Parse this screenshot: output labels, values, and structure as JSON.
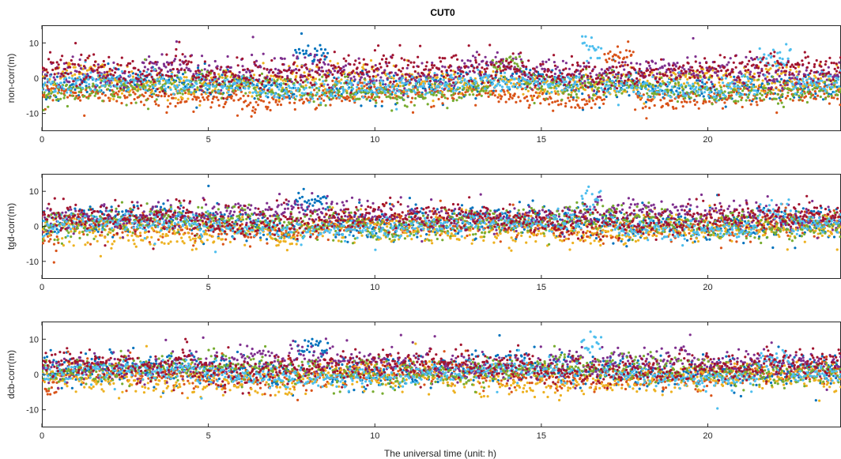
{
  "chart_data": {
    "type": "scatter",
    "title": "CUT0",
    "xlabel": "The universal time (unit: h)",
    "xlim": [
      0,
      24
    ],
    "xticks": [
      0,
      5,
      10,
      15,
      20
    ],
    "colors": [
      "#0072BD",
      "#D95319",
      "#EDB120",
      "#7E2F8E",
      "#77AC30",
      "#4DBEEE",
      "#A2142F"
    ],
    "panels": [
      {
        "ylabel": "non-corr(m)",
        "ylim": [
          -15,
          15
        ],
        "yticks": [
          -10,
          0,
          10
        ],
        "series": [
          {
            "color": "#0072BD",
            "level": -2,
            "spread": 2.0,
            "bursts": [
              [
                7.6,
                8.6,
                7
              ]
            ]
          },
          {
            "color": "#D95319",
            "level": -5,
            "spread": 1.6,
            "bursts": [
              [
                16.9,
                17.8,
                6
              ]
            ]
          },
          {
            "color": "#EDB120",
            "level": -1,
            "spread": 2.0,
            "bursts": [
              [
                0.5,
                2.0,
                2
              ]
            ]
          },
          {
            "color": "#7E2F8E",
            "level": 1,
            "spread": 2.2,
            "bursts": [
              [
                3.0,
                4.5,
                4
              ],
              [
                12.5,
                14.5,
                4
              ]
            ]
          },
          {
            "color": "#77AC30",
            "level": -3,
            "spread": 1.8,
            "bursts": [
              [
                13.5,
                14.5,
                4
              ]
            ]
          },
          {
            "color": "#4DBEEE",
            "level": -2,
            "spread": 1.4,
            "bursts": [
              [
                16.2,
                16.8,
                8
              ],
              [
                21.5,
                22.5,
                5
              ]
            ]
          },
          {
            "color": "#A2142F",
            "level": 2,
            "spread": 2.2,
            "bursts": [
              [
                4.0,
                4.5,
                5
              ]
            ]
          }
        ]
      },
      {
        "ylabel": "tgd-corr(m)",
        "ylim": [
          -15,
          15
        ],
        "yticks": [
          -10,
          0,
          10
        ],
        "series": [
          {
            "color": "#0072BD",
            "level": 1,
            "spread": 2.2,
            "bursts": [
              [
                7.6,
                8.6,
                7
              ]
            ]
          },
          {
            "color": "#D95319",
            "level": 0,
            "spread": 1.8,
            "bursts": [
              [
                0.0,
                0.5,
                -3
              ]
            ]
          },
          {
            "color": "#EDB120",
            "level": -1,
            "spread": 2.0,
            "bursts": [
              [
                7.0,
                7.6,
                -4
              ]
            ]
          },
          {
            "color": "#7E2F8E",
            "level": 3,
            "spread": 2.0,
            "bursts": [
              [
                19.5,
                20.5,
                3
              ]
            ]
          },
          {
            "color": "#77AC30",
            "level": 1,
            "spread": 2.0,
            "bursts": []
          },
          {
            "color": "#4DBEEE",
            "level": 0,
            "spread": 1.4,
            "bursts": [
              [
                16.2,
                16.8,
                8
              ],
              [
                21.5,
                22.5,
                4
              ]
            ]
          },
          {
            "color": "#A2142F",
            "level": 2,
            "spread": 2.0,
            "bursts": [
              [
                4.0,
                4.5,
                5
              ]
            ]
          }
        ]
      },
      {
        "ylabel": "dcb-corr(m)",
        "ylim": [
          -15,
          15
        ],
        "yticks": [
          -10,
          0,
          10
        ],
        "series": [
          {
            "color": "#0072BD",
            "level": 1,
            "spread": 2.2,
            "bursts": [
              [
                7.6,
                8.6,
                7
              ]
            ]
          },
          {
            "color": "#D95319",
            "level": 0,
            "spread": 1.8,
            "bursts": [
              [
                0.0,
                0.5,
                -3
              ]
            ]
          },
          {
            "color": "#EDB120",
            "level": -1,
            "spread": 2.0,
            "bursts": [
              [
                7.0,
                7.6,
                -4
              ]
            ]
          },
          {
            "color": "#7E2F8E",
            "level": 3,
            "spread": 2.0,
            "bursts": [
              [
                19.5,
                20.5,
                3
              ]
            ]
          },
          {
            "color": "#77AC30",
            "level": 1,
            "spread": 2.0,
            "bursts": []
          },
          {
            "color": "#4DBEEE",
            "level": 0,
            "spread": 1.4,
            "bursts": [
              [
                16.2,
                16.8,
                8
              ],
              [
                21.5,
                22.5,
                4
              ]
            ]
          },
          {
            "color": "#A2142F",
            "level": 2,
            "spread": 2.0,
            "bursts": [
              [
                4.0,
                4.5,
                5
              ]
            ]
          }
        ]
      }
    ]
  }
}
